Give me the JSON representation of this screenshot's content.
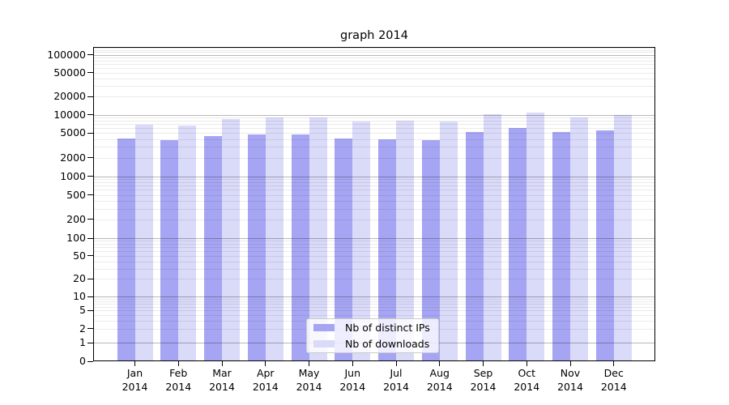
{
  "chart_data": {
    "type": "bar",
    "title": "graph 2014",
    "categories": [
      "Jan",
      "Feb",
      "Mar",
      "Apr",
      "May",
      "Jun",
      "Jul",
      "Aug",
      "Sep",
      "Oct",
      "Nov",
      "Dec"
    ],
    "year_label": "2014",
    "series": [
      {
        "name": "Nb of distinct IPs",
        "color": "#a5a5f3",
        "values": [
          4100,
          3900,
          4500,
          4700,
          4800,
          4100,
          4000,
          3900,
          5200,
          6000,
          5200,
          5600
        ]
      },
      {
        "name": "Nb of downloads",
        "color": "#dadaf9",
        "values": [
          6800,
          6700,
          8500,
          9000,
          9000,
          7800,
          8000,
          7800,
          10200,
          10800,
          9000,
          10000
        ]
      }
    ],
    "yscale": "symlog",
    "y_ticks": [
      0,
      1,
      2,
      5,
      10,
      20,
      50,
      100,
      200,
      500,
      1000,
      2000,
      5000,
      10000,
      20000,
      50000,
      100000
    ],
    "ylim": [
      0,
      137000
    ],
    "grid": true,
    "legend_position": "lower center"
  },
  "colors": {
    "background": "#ffffff",
    "axis": "#000000",
    "major_grid": "#b5b5b5",
    "minor_grid": "#e8e8e8"
  }
}
